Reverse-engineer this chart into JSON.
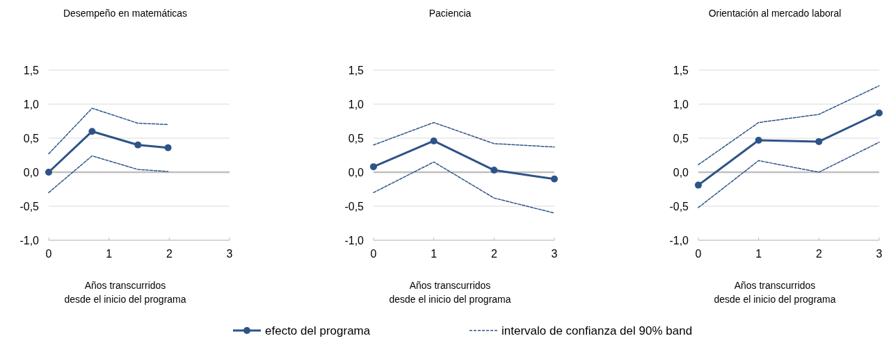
{
  "chart_data": [
    {
      "type": "line",
      "title": "Desempeño en matemáticas",
      "xlabel": "Años transcurridos\ndesde el inicio del programa",
      "xlim": [
        0,
        3
      ],
      "xticks": [
        0,
        1,
        2,
        3
      ],
      "ylim": [
        -1,
        1.5
      ],
      "yticks": [
        {
          "value": -1,
          "label": "-1,0"
        },
        {
          "value": -0.5,
          "label": "-0,5"
        },
        {
          "value": 0,
          "label": "0,0"
        },
        {
          "value": 0.5,
          "label": "0,5"
        },
        {
          "value": 1,
          "label": "1,0"
        },
        {
          "value": 1.5,
          "label": "1,5"
        }
      ],
      "grid": "y",
      "ref_lines": [
        {
          "axis": "y",
          "value": 0,
          "color": "#bfbfbf"
        }
      ],
      "legend": "bottom",
      "series": [
        {
          "name": "efecto del programa",
          "color": "#2e5388",
          "x": [
            0,
            0.72,
            1.48,
            1.98
          ],
          "values": [
            0,
            0.6,
            0.4,
            0.36
          ],
          "marker": "circle",
          "line_style": "solid"
        },
        {
          "name": "intervalo de confianza del 90% band",
          "color": "#2e5388",
          "x": [
            0,
            0.72,
            1.48,
            1.98
          ],
          "values": [
            0.27,
            0.94,
            0.72,
            0.7
          ],
          "marker": "none",
          "line_style": "dashed"
        },
        {
          "color": "#2e5388",
          "x": [
            0,
            0.72,
            1.48,
            1.98
          ],
          "values": [
            -0.3,
            0.24,
            0.04,
            0.01
          ],
          "marker": "none",
          "line_style": "dashed"
        }
      ]
    },
    {
      "type": "line",
      "title": "Paciencia",
      "xlabel": "Años transcurridos\ndesde el inicio del programa",
      "xlim": [
        0,
        3
      ],
      "xticks": [
        0,
        1,
        2,
        3
      ],
      "ylim": [
        -1,
        1.5
      ],
      "yticks": [
        {
          "value": -1,
          "label": "-1,0"
        },
        {
          "value": -0.5,
          "label": "-0,5"
        },
        {
          "value": 0,
          "label": "0,0"
        },
        {
          "value": 0.5,
          "label": "0,5"
        },
        {
          "value": 1,
          "label": "1,0"
        },
        {
          "value": 1.5,
          "label": "1,5"
        }
      ],
      "grid": "y",
      "ref_lines": [
        {
          "axis": "y",
          "value": 0,
          "color": "#bfbfbf"
        }
      ],
      "series": [
        {
          "color": "#2e5388",
          "x": [
            0,
            1,
            2,
            3
          ],
          "values": [
            0.08,
            0.46,
            0.03,
            -0.1
          ],
          "marker": "circle",
          "line_style": "solid"
        },
        {
          "color": "#2e5388",
          "x": [
            0,
            1,
            2,
            3
          ],
          "values": [
            0.4,
            0.73,
            0.42,
            0.37
          ],
          "marker": "none",
          "line_style": "dashed"
        },
        {
          "color": "#2e5388",
          "x": [
            0,
            1,
            2,
            3
          ],
          "values": [
            -0.3,
            0.15,
            -0.38,
            -0.6
          ],
          "marker": "none",
          "line_style": "dashed"
        }
      ]
    },
    {
      "type": "line",
      "title": "Orientación al mercado laboral",
      "xlabel": "Años transcurridos\ndesde el inicio del programa",
      "xlim": [
        0,
        3
      ],
      "xticks": [
        0,
        1,
        2,
        3
      ],
      "ylim": [
        -1,
        1.5
      ],
      "yticks": [
        {
          "value": -1,
          "label": "-1,0"
        },
        {
          "value": -0.5,
          "label": "-0,5"
        },
        {
          "value": 0,
          "label": "0,0"
        },
        {
          "value": 0.5,
          "label": "0,5"
        },
        {
          "value": 1,
          "label": "1,0"
        },
        {
          "value": 1.5,
          "label": "1,5"
        }
      ],
      "grid": "y",
      "ref_lines": [
        {
          "axis": "y",
          "value": 0,
          "color": "#bfbfbf"
        }
      ],
      "series": [
        {
          "color": "#2e5388",
          "x": [
            0,
            1,
            2,
            3
          ],
          "values": [
            -0.19,
            0.47,
            0.45,
            0.87
          ],
          "marker": "circle",
          "line_style": "solid"
        },
        {
          "color": "#2e5388",
          "x": [
            0,
            1,
            2,
            3
          ],
          "values": [
            0.11,
            0.73,
            0.85,
            1.27
          ],
          "marker": "none",
          "line_style": "dashed"
        },
        {
          "color": "#2e5388",
          "x": [
            0,
            1,
            2,
            3
          ],
          "values": [
            -0.52,
            0.17,
            0.0,
            0.44
          ],
          "marker": "none",
          "line_style": "dashed"
        }
      ]
    }
  ]
}
